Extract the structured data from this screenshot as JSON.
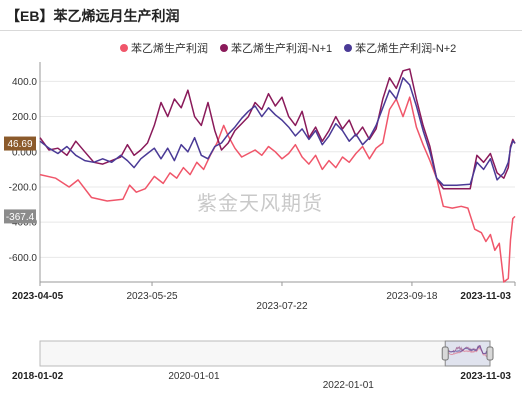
{
  "header": {
    "title": "【EB】苯乙烯远月生产利润"
  },
  "chart_data": {
    "type": "line",
    "legend_position": "top",
    "watermark": "紫金天风期货",
    "y_axis": {
      "ylim": [
        -740,
        510
      ],
      "ticks": [
        400,
        200,
        0,
        -200,
        -400,
        -600
      ],
      "tick_labels": [
        "400.0",
        "200.0",
        "0.000",
        "-200.0",
        "-400.0",
        "-600.0"
      ]
    },
    "x_axis": {
      "range": [
        "2023-04-05",
        "2023-11-03"
      ],
      "tick_dates": [
        "2023-04-05",
        "2023-05-25",
        "2023-07-22",
        "2023-09-18",
        "2023-11-03"
      ],
      "tick_labels": [
        "2023-04-05",
        "2023-05-25",
        "2023-07-22",
        "2023-09-18",
        "2023-11-03"
      ]
    },
    "value_tags": [
      {
        "value": 46.69,
        "label": "46.69",
        "color": "#8b5a2b"
      },
      {
        "value": -367.4,
        "label": "-367.4",
        "color": "#8c8c8c"
      }
    ],
    "series": [
      {
        "name": "苯乙烯生产利润",
        "color": "#f0566a",
        "points": [
          [
            "2023-04-05",
            -130
          ],
          [
            "2023-04-12",
            -150
          ],
          [
            "2023-04-18",
            -200
          ],
          [
            "2023-04-22",
            -160
          ],
          [
            "2023-04-28",
            -260
          ],
          [
            "2023-05-05",
            -280
          ],
          [
            "2023-05-12",
            -270
          ],
          [
            "2023-05-15",
            -190
          ],
          [
            "2023-05-18",
            -230
          ],
          [
            "2023-05-22",
            -210
          ],
          [
            "2023-05-26",
            -140
          ],
          [
            "2023-05-30",
            -180
          ],
          [
            "2023-06-02",
            -120
          ],
          [
            "2023-06-05",
            -150
          ],
          [
            "2023-06-08",
            -90
          ],
          [
            "2023-06-11",
            -130
          ],
          [
            "2023-06-14",
            -60
          ],
          [
            "2023-06-17",
            -100
          ],
          [
            "2023-06-20",
            -20
          ],
          [
            "2023-06-23",
            50
          ],
          [
            "2023-06-26",
            150
          ],
          [
            "2023-06-28",
            90
          ],
          [
            "2023-07-01",
            20
          ],
          [
            "2023-07-04",
            -30
          ],
          [
            "2023-07-07",
            -10
          ],
          [
            "2023-07-10",
            10
          ],
          [
            "2023-07-13",
            -20
          ],
          [
            "2023-07-16",
            30
          ],
          [
            "2023-07-19",
            0
          ],
          [
            "2023-07-22",
            -40
          ],
          [
            "2023-07-25",
            -10
          ],
          [
            "2023-07-28",
            40
          ],
          [
            "2023-07-31",
            -30
          ],
          [
            "2023-08-03",
            -70
          ],
          [
            "2023-08-06",
            -20
          ],
          [
            "2023-08-09",
            -100
          ],
          [
            "2023-08-12",
            -50
          ],
          [
            "2023-08-15",
            -90
          ],
          [
            "2023-08-18",
            -30
          ],
          [
            "2023-08-21",
            -60
          ],
          [
            "2023-08-24",
            -10
          ],
          [
            "2023-08-27",
            30
          ],
          [
            "2023-08-30",
            -40
          ],
          [
            "2023-09-02",
            20
          ],
          [
            "2023-09-05",
            50
          ],
          [
            "2023-09-08",
            240
          ],
          [
            "2023-09-11",
            300
          ],
          [
            "2023-09-14",
            200
          ],
          [
            "2023-09-17",
            310
          ],
          [
            "2023-09-20",
            140
          ],
          [
            "2023-09-23",
            40
          ],
          [
            "2023-09-26",
            -50
          ],
          [
            "2023-09-29",
            -150
          ],
          [
            "2023-10-02",
            -310
          ],
          [
            "2023-10-06",
            -320
          ],
          [
            "2023-10-10",
            -310
          ],
          [
            "2023-10-13",
            -320
          ],
          [
            "2023-10-16",
            -440
          ],
          [
            "2023-10-19",
            -460
          ],
          [
            "2023-10-21",
            -510
          ],
          [
            "2023-10-23",
            -470
          ],
          [
            "2023-10-25",
            -560
          ],
          [
            "2023-10-27",
            -520
          ],
          [
            "2023-10-29",
            -740
          ],
          [
            "2023-10-31",
            -720
          ],
          [
            "2023-11-01",
            -500
          ],
          [
            "2023-11-02",
            -380
          ],
          [
            "2023-11-03",
            -367.4
          ]
        ]
      },
      {
        "name": "苯乙烯生产利润-N+1",
        "color": "#8a1a5a",
        "points": [
          [
            "2023-04-05",
            80
          ],
          [
            "2023-04-09",
            10
          ],
          [
            "2023-04-13",
            20
          ],
          [
            "2023-04-17",
            -20
          ],
          [
            "2023-04-21",
            60
          ],
          [
            "2023-04-25",
            0
          ],
          [
            "2023-04-29",
            -60
          ],
          [
            "2023-05-03",
            -70
          ],
          [
            "2023-05-07",
            -50
          ],
          [
            "2023-05-11",
            -30
          ],
          [
            "2023-05-14",
            40
          ],
          [
            "2023-05-17",
            -20
          ],
          [
            "2023-05-20",
            10
          ],
          [
            "2023-05-23",
            50
          ],
          [
            "2023-05-26",
            150
          ],
          [
            "2023-05-29",
            280
          ],
          [
            "2023-06-01",
            200
          ],
          [
            "2023-06-04",
            300
          ],
          [
            "2023-06-07",
            250
          ],
          [
            "2023-06-10",
            350
          ],
          [
            "2023-06-13",
            200
          ],
          [
            "2023-06-16",
            150
          ],
          [
            "2023-06-19",
            280
          ],
          [
            "2023-06-22",
            120
          ],
          [
            "2023-06-25",
            10
          ],
          [
            "2023-06-28",
            50
          ],
          [
            "2023-07-01",
            120
          ],
          [
            "2023-07-04",
            160
          ],
          [
            "2023-07-07",
            200
          ],
          [
            "2023-07-10",
            280
          ],
          [
            "2023-07-13",
            240
          ],
          [
            "2023-07-16",
            330
          ],
          [
            "2023-07-19",
            260
          ],
          [
            "2023-07-22",
            310
          ],
          [
            "2023-07-25",
            200
          ],
          [
            "2023-07-28",
            150
          ],
          [
            "2023-07-31",
            230
          ],
          [
            "2023-08-03",
            80
          ],
          [
            "2023-08-06",
            140
          ],
          [
            "2023-08-09",
            60
          ],
          [
            "2023-08-12",
            120
          ],
          [
            "2023-08-15",
            200
          ],
          [
            "2023-08-18",
            130
          ],
          [
            "2023-08-21",
            180
          ],
          [
            "2023-08-24",
            90
          ],
          [
            "2023-08-27",
            140
          ],
          [
            "2023-08-30",
            70
          ],
          [
            "2023-09-02",
            130
          ],
          [
            "2023-09-05",
            300
          ],
          [
            "2023-09-08",
            420
          ],
          [
            "2023-09-11",
            360
          ],
          [
            "2023-09-14",
            460
          ],
          [
            "2023-09-17",
            470
          ],
          [
            "2023-09-20",
            300
          ],
          [
            "2023-09-23",
            150
          ],
          [
            "2023-09-26",
            30
          ],
          [
            "2023-09-29",
            -150
          ],
          [
            "2023-10-02",
            -210
          ],
          [
            "2023-10-08",
            -210
          ],
          [
            "2023-10-14",
            -210
          ],
          [
            "2023-10-17",
            -20
          ],
          [
            "2023-10-20",
            -60
          ],
          [
            "2023-10-23",
            -10
          ],
          [
            "2023-10-26",
            -120
          ],
          [
            "2023-10-29",
            -150
          ],
          [
            "2023-10-31",
            -90
          ],
          [
            "2023-11-01",
            30
          ],
          [
            "2023-11-02",
            70
          ],
          [
            "2023-11-03",
            46.69
          ]
        ]
      },
      {
        "name": "苯乙烯生产利润-N+2",
        "color": "#4a3a96",
        "points": [
          [
            "2023-04-05",
            60
          ],
          [
            "2023-04-09",
            20
          ],
          [
            "2023-04-13",
            -10
          ],
          [
            "2023-04-17",
            30
          ],
          [
            "2023-04-21",
            -20
          ],
          [
            "2023-04-25",
            -50
          ],
          [
            "2023-04-29",
            -60
          ],
          [
            "2023-05-03",
            -40
          ],
          [
            "2023-05-07",
            -60
          ],
          [
            "2023-05-11",
            -20
          ],
          [
            "2023-05-14",
            -50
          ],
          [
            "2023-05-17",
            -90
          ],
          [
            "2023-05-20",
            -40
          ],
          [
            "2023-05-23",
            -10
          ],
          [
            "2023-05-26",
            20
          ],
          [
            "2023-05-29",
            -40
          ],
          [
            "2023-06-01",
            20
          ],
          [
            "2023-06-04",
            -50
          ],
          [
            "2023-06-07",
            40
          ],
          [
            "2023-06-10",
            0
          ],
          [
            "2023-06-13",
            80
          ],
          [
            "2023-06-16",
            -20
          ],
          [
            "2023-06-19",
            -40
          ],
          [
            "2023-06-22",
            30
          ],
          [
            "2023-06-25",
            50
          ],
          [
            "2023-06-28",
            100
          ],
          [
            "2023-07-01",
            140
          ],
          [
            "2023-07-04",
            190
          ],
          [
            "2023-07-07",
            230
          ],
          [
            "2023-07-10",
            260
          ],
          [
            "2023-07-13",
            200
          ],
          [
            "2023-07-16",
            250
          ],
          [
            "2023-07-19",
            210
          ],
          [
            "2023-07-22",
            180
          ],
          [
            "2023-07-25",
            140
          ],
          [
            "2023-07-28",
            90
          ],
          [
            "2023-07-31",
            130
          ],
          [
            "2023-08-03",
            70
          ],
          [
            "2023-08-06",
            120
          ],
          [
            "2023-08-09",
            40
          ],
          [
            "2023-08-12",
            90
          ],
          [
            "2023-08-15",
            160
          ],
          [
            "2023-08-18",
            120
          ],
          [
            "2023-08-21",
            60
          ],
          [
            "2023-08-24",
            100
          ],
          [
            "2023-08-27",
            40
          ],
          [
            "2023-08-30",
            80
          ],
          [
            "2023-09-02",
            150
          ],
          [
            "2023-09-05",
            250
          ],
          [
            "2023-09-08",
            350
          ],
          [
            "2023-09-11",
            300
          ],
          [
            "2023-09-14",
            420
          ],
          [
            "2023-09-17",
            380
          ],
          [
            "2023-09-20",
            260
          ],
          [
            "2023-09-23",
            120
          ],
          [
            "2023-09-26",
            0
          ],
          [
            "2023-09-29",
            -150
          ],
          [
            "2023-10-02",
            -190
          ],
          [
            "2023-10-08",
            -190
          ],
          [
            "2023-10-14",
            -185
          ],
          [
            "2023-10-17",
            -60
          ],
          [
            "2023-10-20",
            -100
          ],
          [
            "2023-10-23",
            -40
          ],
          [
            "2023-10-26",
            -160
          ],
          [
            "2023-10-29",
            -120
          ],
          [
            "2023-10-31",
            -60
          ],
          [
            "2023-11-01",
            20
          ],
          [
            "2023-11-02",
            60
          ],
          [
            "2023-11-03",
            50
          ]
        ]
      }
    ],
    "navigator": {
      "range": [
        "2018-01-02",
        "2023-11-03"
      ],
      "tick_labels": [
        "2018-01-02",
        "2020-01-01",
        "2022-01-01",
        "2023-11-03"
      ],
      "selected_range": [
        "2023-04-05",
        "2023-11-03"
      ]
    }
  }
}
